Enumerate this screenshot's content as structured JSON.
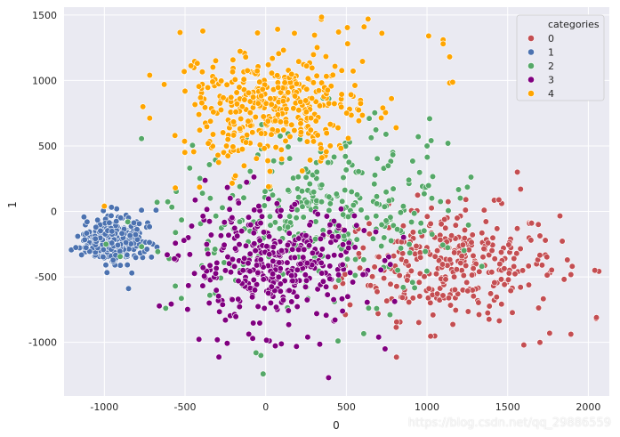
{
  "chart_data": {
    "type": "scatter",
    "title": "",
    "xlabel": "0",
    "ylabel": "1",
    "xlim": [
      -1250,
      2130
    ],
    "ylim": [
      -1410,
      1560
    ],
    "xticks": [
      -1000,
      -500,
      0,
      500,
      1000,
      1500,
      2000
    ],
    "yticks": [
      -1000,
      -500,
      0,
      500,
      1000,
      1500
    ],
    "grid": true,
    "legend": {
      "title": "categories",
      "position": "top-right"
    },
    "series": [
      {
        "name": "0",
        "color": "#c44e52",
        "center": [
          1150,
          -400
        ],
        "spread": [
          330,
          210
        ],
        "n": 330,
        "outliers": [
          [
            2040,
            -450
          ],
          [
            2050,
            -810
          ],
          [
            1760,
            -930
          ],
          [
            1600,
            -1020
          ],
          [
            1700,
            -1000
          ],
          [
            1560,
            300
          ],
          [
            1580,
            170
          ],
          [
            1870,
            -370
          ],
          [
            1900,
            -420
          ]
        ]
      },
      {
        "name": "1",
        "color": "#4c72b0",
        "center": [
          -950,
          -220
        ],
        "spread": [
          90,
          90
        ],
        "n": 340,
        "outliers": [
          [
            -1080,
            -220
          ],
          [
            -1060,
            -340
          ],
          [
            -850,
            -590
          ],
          [
            -770,
            10
          ],
          [
            -680,
            10
          ],
          [
            -700,
            -250
          ]
        ]
      },
      {
        "name": "2",
        "color": "#55a868",
        "center": [
          330,
          0
        ],
        "spread": [
          420,
          330
        ],
        "n": 330,
        "outliers": [
          [
            -60,
            -1080
          ],
          [
            -30,
            -1100
          ],
          [
            1130,
            520
          ],
          [
            1000,
            500
          ],
          [
            -620,
            -740
          ],
          [
            -560,
            -570
          ]
        ]
      },
      {
        "name": "3",
        "color": "#800080",
        "center": [
          40,
          -420
        ],
        "spread": [
          280,
          230
        ],
        "n": 380,
        "outliers": [
          [
            390,
            -1270
          ],
          [
            740,
            -1050
          ],
          [
            700,
            -960
          ],
          [
            -300,
            -980
          ],
          [
            -480,
            -200
          ]
        ]
      },
      {
        "name": "4",
        "color": "#ffa500",
        "center": [
          50,
          800
        ],
        "spread": [
          290,
          230
        ],
        "n": 390,
        "outliers": [
          [
            610,
            1410
          ],
          [
            1010,
            1340
          ],
          [
            1100,
            1310
          ],
          [
            1100,
            1280
          ],
          [
            1140,
            1180
          ],
          [
            1140,
            980
          ],
          [
            -1000,
            40
          ],
          [
            -560,
            180
          ],
          [
            720,
            1360
          ]
        ]
      }
    ]
  },
  "watermark": "https://blog.csdn.net/qq_29886559"
}
